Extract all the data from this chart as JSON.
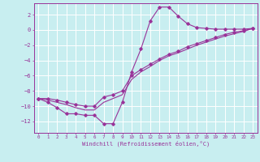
{
  "xlabel": "Windchill (Refroidissement éolien,°C)",
  "background_color": "#c8eef0",
  "grid_color": "#ffffff",
  "line_color": "#993399",
  "marker_color": "#993399",
  "xlim": [
    -0.5,
    23.5
  ],
  "ylim": [
    -13.5,
    3.5
  ],
  "xticks": [
    0,
    1,
    2,
    3,
    4,
    5,
    6,
    7,
    8,
    9,
    10,
    11,
    12,
    13,
    14,
    15,
    16,
    17,
    18,
    19,
    20,
    21,
    22,
    23
  ],
  "yticks": [
    -12,
    -10,
    -8,
    -6,
    -4,
    -2,
    0,
    2
  ],
  "series1_x": [
    0,
    1,
    2,
    3,
    4,
    5,
    6,
    7,
    8,
    9,
    10,
    11,
    12,
    13,
    14,
    15,
    16,
    17,
    18,
    19,
    20,
    21,
    22,
    23
  ],
  "series1_y": [
    -9.0,
    -9.5,
    -10.2,
    -11.0,
    -11.0,
    -11.2,
    -11.2,
    -12.3,
    -12.3,
    -9.5,
    -5.5,
    -2.5,
    1.2,
    3.0,
    3.0,
    1.8,
    0.8,
    0.3,
    0.2,
    0.1,
    0.1,
    0.1,
    0.1,
    0.2
  ],
  "series2_x": [
    0,
    1,
    2,
    3,
    4,
    5,
    6,
    7,
    8,
    9,
    10,
    11,
    12,
    13,
    14,
    15,
    16,
    17,
    18,
    19,
    20,
    21,
    22,
    23
  ],
  "series2_y": [
    -9.0,
    -9.0,
    -9.2,
    -9.5,
    -9.8,
    -10.0,
    -10.0,
    -8.8,
    -8.5,
    -8.0,
    -6.0,
    -5.2,
    -4.5,
    -3.8,
    -3.2,
    -2.8,
    -2.2,
    -1.8,
    -1.4,
    -1.0,
    -0.6,
    -0.3,
    -0.1,
    0.2
  ],
  "series3_x": [
    0,
    1,
    2,
    3,
    4,
    5,
    6,
    7,
    8,
    9,
    10,
    11,
    12,
    13,
    14,
    15,
    16,
    17,
    18,
    19,
    20,
    21,
    22,
    23
  ],
  "series3_y": [
    -9.0,
    -9.2,
    -9.5,
    -9.8,
    -10.2,
    -10.5,
    -10.5,
    -9.5,
    -9.0,
    -8.5,
    -6.5,
    -5.5,
    -4.8,
    -4.0,
    -3.4,
    -3.0,
    -2.5,
    -2.0,
    -1.6,
    -1.2,
    -0.8,
    -0.5,
    -0.2,
    0.2
  ]
}
